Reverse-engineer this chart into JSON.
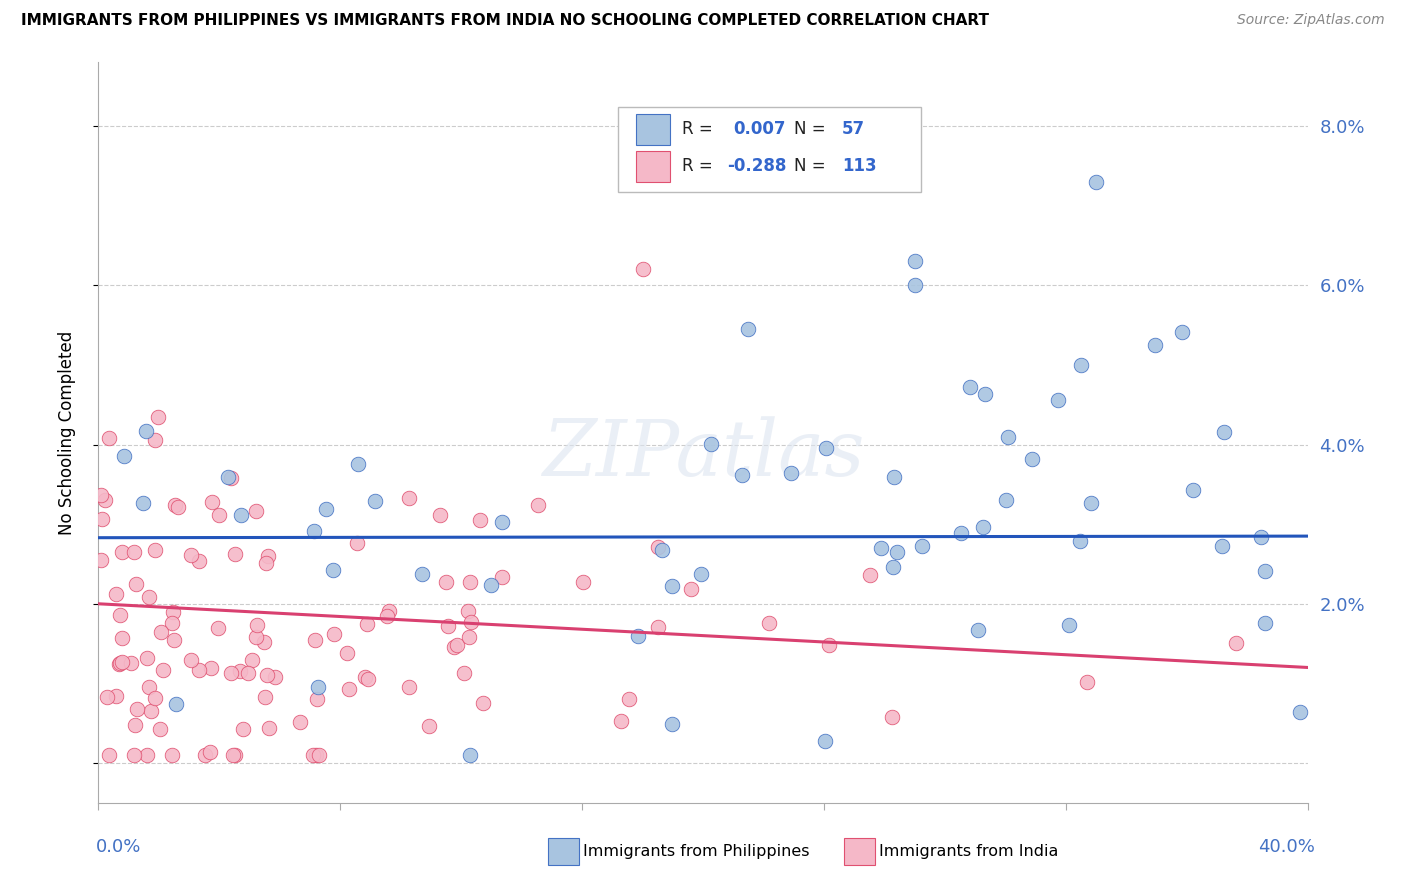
{
  "title": "IMMIGRANTS FROM PHILIPPINES VS IMMIGRANTS FROM INDIA NO SCHOOLING COMPLETED CORRELATION CHART",
  "source": "Source: ZipAtlas.com",
  "ylabel": "No Schooling Completed",
  "blue_color": "#a8c4e0",
  "blue_edge_color": "#4472c4",
  "blue_line_color": "#2255bb",
  "pink_color": "#f5b8c8",
  "pink_edge_color": "#e05070",
  "pink_line_color": "#d94070",
  "blue_R": 0.007,
  "blue_N": 57,
  "pink_R": -0.288,
  "pink_N": 113,
  "xmin": 0.0,
  "xmax": 0.4,
  "ymin": -0.005,
  "ymax": 0.088,
  "blue_trend": [
    0.0283,
    0.0285
  ],
  "pink_trend": [
    0.02,
    0.012
  ]
}
